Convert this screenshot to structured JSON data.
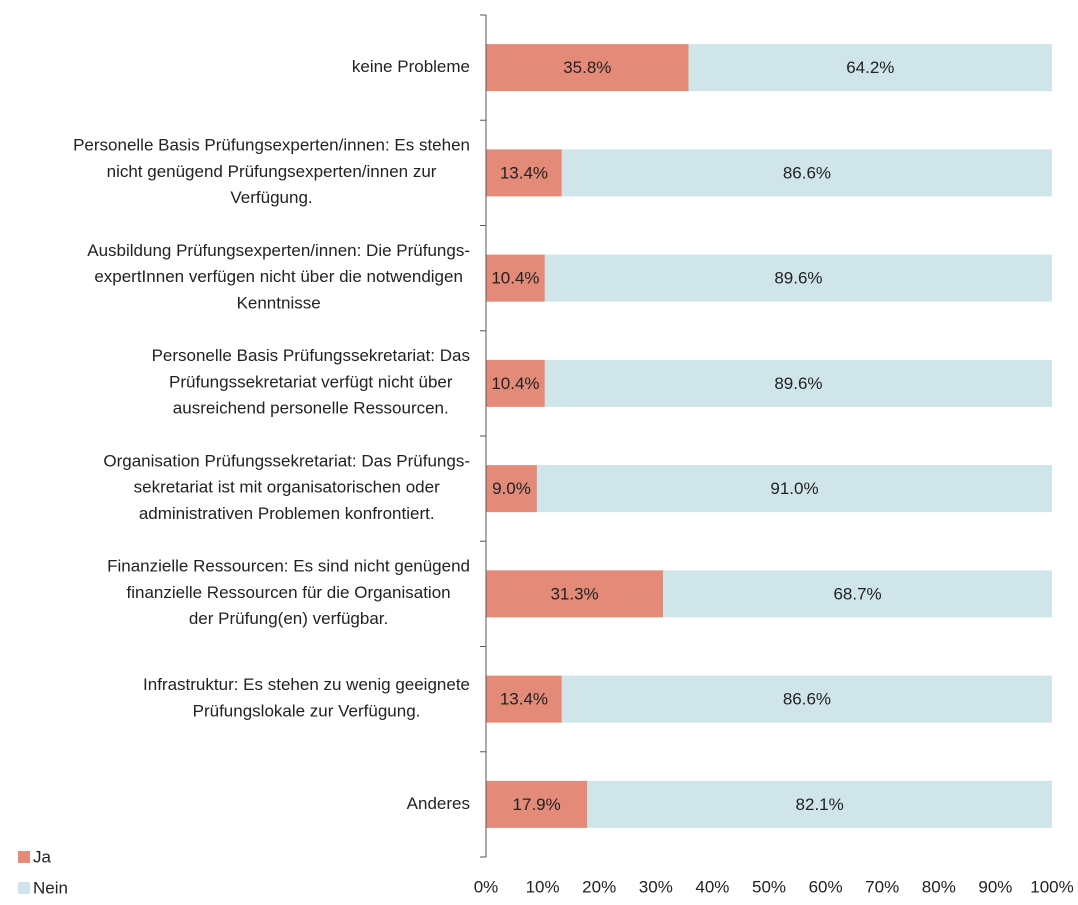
{
  "chart_data": {
    "type": "stacked-bar-horizontal",
    "categories": [
      "keine Probleme",
      "Personelle Basis Prüfungsexperten/innen: Es stehen\nnicht genügend Prüfungsexperten/innen zur\nVerfügung.",
      "Ausbildung Prüfungsexperten/innen: Die Prüfungs-\nexpertInnen verfügen nicht über die notwendigen\nKenntnisse",
      "Personelle Basis Prüfungssekretariat: Das\nPrüfungssekretariat verfügt nicht über\nausreichend personelle Ressourcen.",
      "Organisation Prüfungssekretariat: Das Prüfungs-\nsekretariat ist mit organisatorischen oder\nadministrativen Problemen konfrontiert.",
      "Finanzielle Ressourcen: Es sind nicht genügend\nfinanzielle Ressourcen für die Organisation\nder Prüfung(en) verfügbar.",
      "Infrastruktur: Es stehen zu wenig geeignete\nPrüfungslokale zur Verfügung.",
      "Anderes"
    ],
    "series": [
      {
        "name": "Ja",
        "color": "#e48a78",
        "values": [
          35.8,
          13.4,
          10.4,
          10.4,
          9.0,
          31.3,
          13.4,
          17.9
        ],
        "value_labels": [
          "35.8%",
          "13.4%",
          "10.4%",
          "10.4%",
          "9.0%",
          "31.3%",
          "13.4%",
          "17.9%"
        ]
      },
      {
        "name": "Nein",
        "color": "#cfe5ea",
        "values": [
          64.2,
          86.6,
          89.6,
          89.6,
          91.0,
          68.7,
          86.6,
          82.1
        ],
        "value_labels": [
          "64.2%",
          "86.6%",
          "89.6%",
          "89.6%",
          "91.0%",
          "68.7%",
          "86.6%",
          "82.1%"
        ]
      }
    ],
    "xlim": [
      0,
      100
    ],
    "xticks": [
      {
        "value": 0,
        "label": "0%"
      },
      {
        "value": 10,
        "label": "10%"
      },
      {
        "value": 20,
        "label": "20%"
      },
      {
        "value": 30,
        "label": "30%"
      },
      {
        "value": 40,
        "label": "40%"
      },
      {
        "value": 50,
        "label": "50%"
      },
      {
        "value": 60,
        "label": "60%"
      },
      {
        "value": 70,
        "label": "70%"
      },
      {
        "value": 80,
        "label": "80%"
      },
      {
        "value": 90,
        "label": "90%"
      },
      {
        "value": 100,
        "label": "100%"
      }
    ],
    "grid": false,
    "legend": "bottom-left"
  }
}
